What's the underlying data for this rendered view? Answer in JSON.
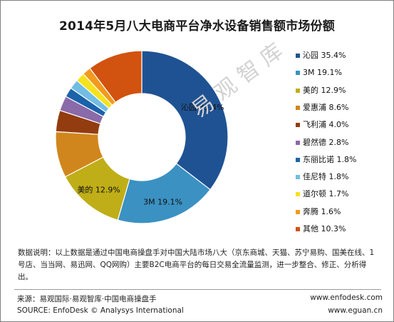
{
  "chart_data": {
    "type": "pie",
    "variant": "donut",
    "title": "2014年5月八大电商平台净水设备销售额市场份额",
    "unit": "%",
    "slices": [
      {
        "name": "沁园",
        "value": 35.4,
        "label": "沁园 35.4%",
        "legend": "沁园  35.4%",
        "color": "#1f5293"
      },
      {
        "name": "3M",
        "value": 19.1,
        "label": "3M 19.1%",
        "legend": "3M  19.1%",
        "color": "#3b91c2"
      },
      {
        "name": "美的",
        "value": 12.9,
        "label": "美的 12.9%",
        "legend": "美的  12.9%",
        "color": "#bfae17"
      },
      {
        "name": "爱惠浦",
        "value": 8.6,
        "legend": "爱惠浦  8.6%",
        "color": "#d1861d"
      },
      {
        "name": "飞利浦",
        "value": 4.0,
        "legend": "飞利浦  4.0%",
        "color": "#933c10"
      },
      {
        "name": "碧然德",
        "value": 2.8,
        "legend": "碧然德  2.8%",
        "color": "#8a6aa8"
      },
      {
        "name": "东丽比诺",
        "value": 1.8,
        "legend": "东丽比诺  1.8%",
        "color": "#1c62aa"
      },
      {
        "name": "佳尼特",
        "value": 1.8,
        "legend": "佳尼特  1.8%",
        "color": "#72bde4"
      },
      {
        "name": "道尔顿",
        "value": 1.7,
        "legend": "道尔顿  1.7%",
        "color": "#f6e21c"
      },
      {
        "name": "奔腾",
        "value": 1.6,
        "legend": "奔腾  1.6%",
        "color": "#f19a1d"
      },
      {
        "name": "其他",
        "value": 10.3,
        "legend": "其他  10.3%",
        "color": "#d2520f"
      }
    ],
    "legend_position": "right"
  },
  "watermark": "易观智库",
  "note": {
    "text": "数据说明：以上数据是通过中国电商操盘手对中国大陆市场八大（京东商城、天猫、苏宁易购、国美在线、1号店、当当网、易迅网、QQ网购）主要B2C电商平台的每日交易全流量监测，进一步整合、修正、分析得出。"
  },
  "footer": {
    "source_cn": "来源：易观国际·易观智库·中国电商操盘手",
    "source_en": "SOURCE: EnfoDesk © Analysys International",
    "site1": "www.enfodesk.com",
    "site2": "www.eguan.cn"
  }
}
